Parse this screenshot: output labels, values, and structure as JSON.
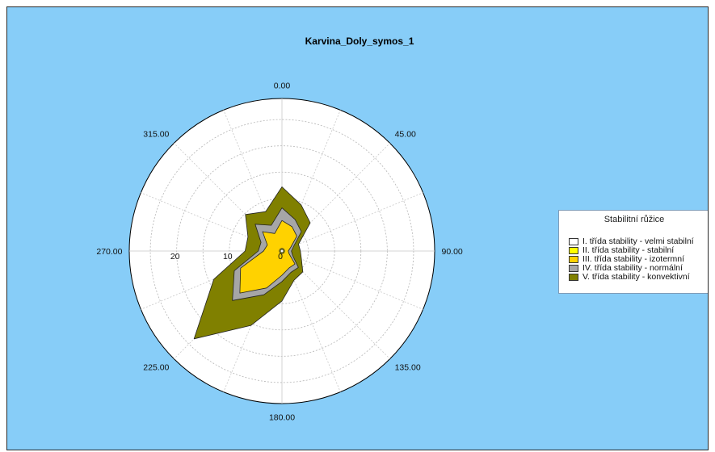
{
  "chart_data": {
    "type": "polar-area",
    "title": "Karvina_Doly_symos_1",
    "angle_labels": [
      "0.00",
      "45.00",
      "90.00",
      "135.00",
      "180.00",
      "225.00",
      "270.00",
      "315.00"
    ],
    "radial_tick_labels": [
      "0",
      "10",
      "20"
    ],
    "rmax": 29,
    "directions": [
      0,
      22.5,
      45,
      67.5,
      90,
      112.5,
      135,
      157.5,
      180,
      202.5,
      225,
      247.5,
      270,
      292.5,
      315,
      337.5
    ],
    "series": [
      {
        "name": "I. třída stability - velmi stabilní",
        "color": "#ffffff",
        "values": [
          0.3,
          0.3,
          0.3,
          0.3,
          0.3,
          0.3,
          0.3,
          0.3,
          0.3,
          0.3,
          0.3,
          0.3,
          0.3,
          0.3,
          0.3,
          0.3
        ]
      },
      {
        "name": "II. třída stability - stabilní",
        "color": "#ffff00",
        "values": [
          0.5,
          0.5,
          0.5,
          0.5,
          0.5,
          0.5,
          0.5,
          0.5,
          0.5,
          0.5,
          0.5,
          0.5,
          0.5,
          0.5,
          0.5,
          0.5
        ]
      },
      {
        "name": "III. třída stability - izotermní",
        "color": "#ffd200",
        "values": [
          5.8,
          5.0,
          4.0,
          1.8,
          1.2,
          1.5,
          3.5,
          3.5,
          4.6,
          7.6,
          11.3,
          8.5,
          3.5,
          3.0,
          5.2,
          3.6
        ]
      },
      {
        "name": "IV. třída stability - normální",
        "color": "#a6a6a6",
        "values": [
          8.2,
          6.5,
          5.2,
          2.4,
          1.8,
          2.2,
          4.4,
          4.4,
          5.8,
          9.0,
          13.3,
          9.8,
          4.5,
          4.3,
          7.2,
          5.3
        ]
      },
      {
        "name": "V. třída stability - konvektivní",
        "color": "#808000",
        "values": [
          12.2,
          9.5,
          7.6,
          3.4,
          3.5,
          4.0,
          5.6,
          6.0,
          9.5,
          15.3,
          23.6,
          14.0,
          7.0,
          7.0,
          9.8,
          8.1
        ]
      }
    ]
  },
  "legend": {
    "title": "Stabilitní růžice"
  }
}
